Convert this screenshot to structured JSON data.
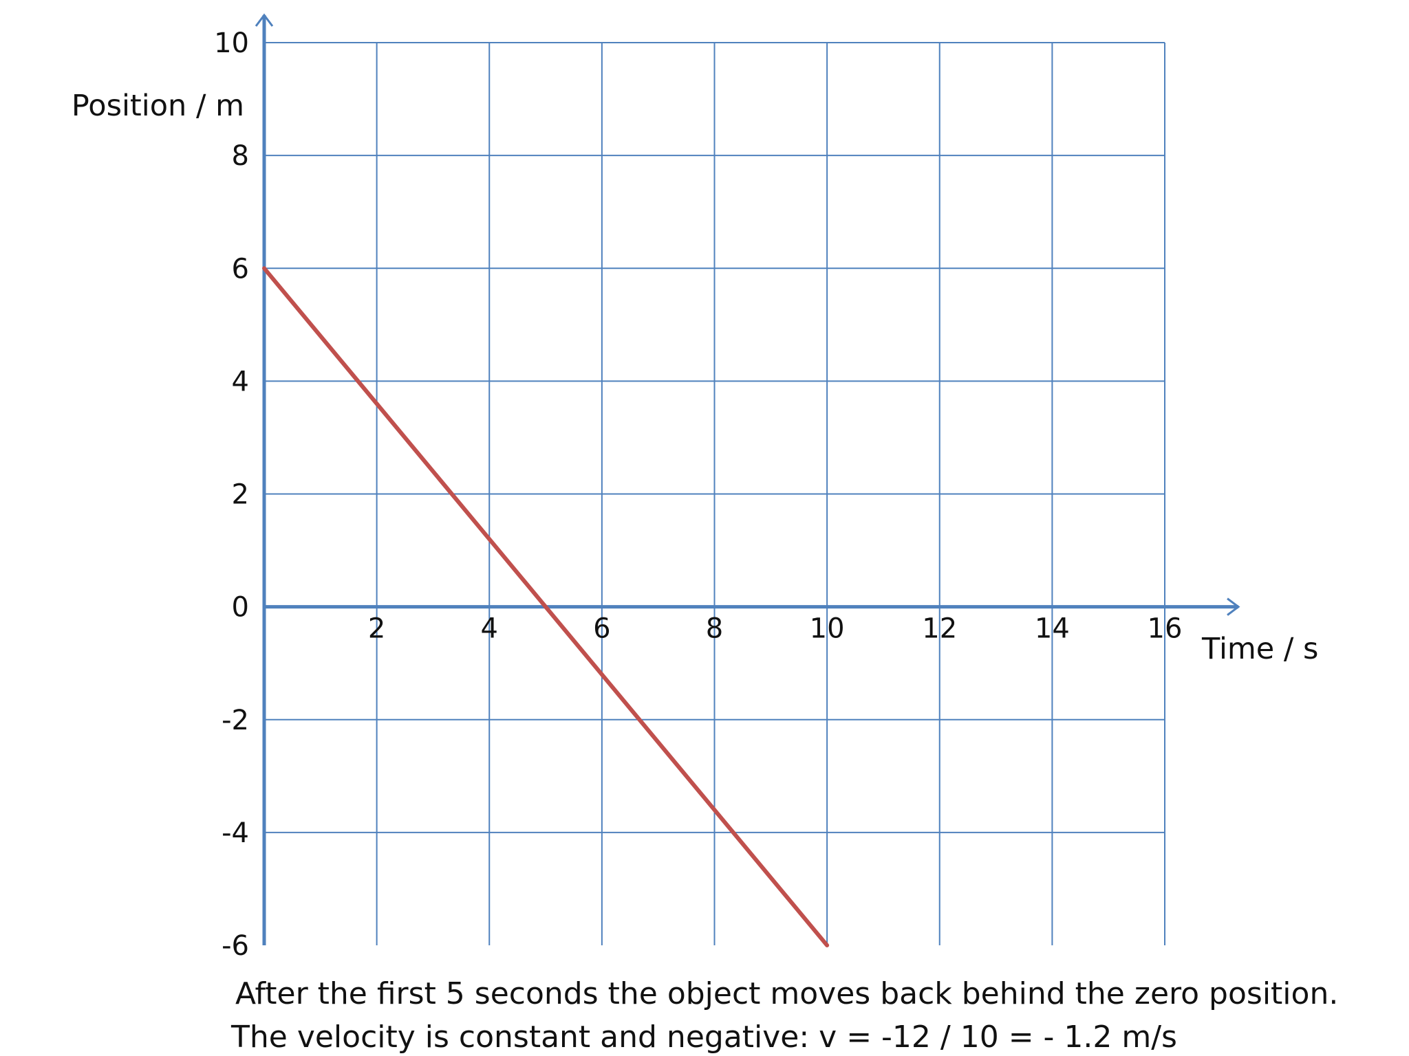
{
  "chart_data": {
    "type": "line",
    "xlabel": "Time / s",
    "ylabel": "Position / m",
    "xlim": [
      0,
      16
    ],
    "ylim": [
      -6,
      10
    ],
    "x_ticks": [
      "2",
      "4",
      "6",
      "8",
      "10",
      "12",
      "14",
      "16"
    ],
    "y_ticks": [
      "10",
      "8",
      "6",
      "4",
      "2",
      "0",
      "-2",
      "-4",
      "-6"
    ],
    "grid": true,
    "series": [
      {
        "x": [
          0,
          10
        ],
        "y": [
          6,
          -6
        ],
        "color": "#c0504d"
      }
    ]
  },
  "caption": {
    "line1": "After the first 5 seconds the object moves back behind the zero position.",
    "line2": "The velocity is constant and negative:  v = -12 / 10 = - 1.2 m/s"
  },
  "colors": {
    "grid": "#4f81bd",
    "axis": "#4f81bd",
    "line": "#c0504d"
  }
}
